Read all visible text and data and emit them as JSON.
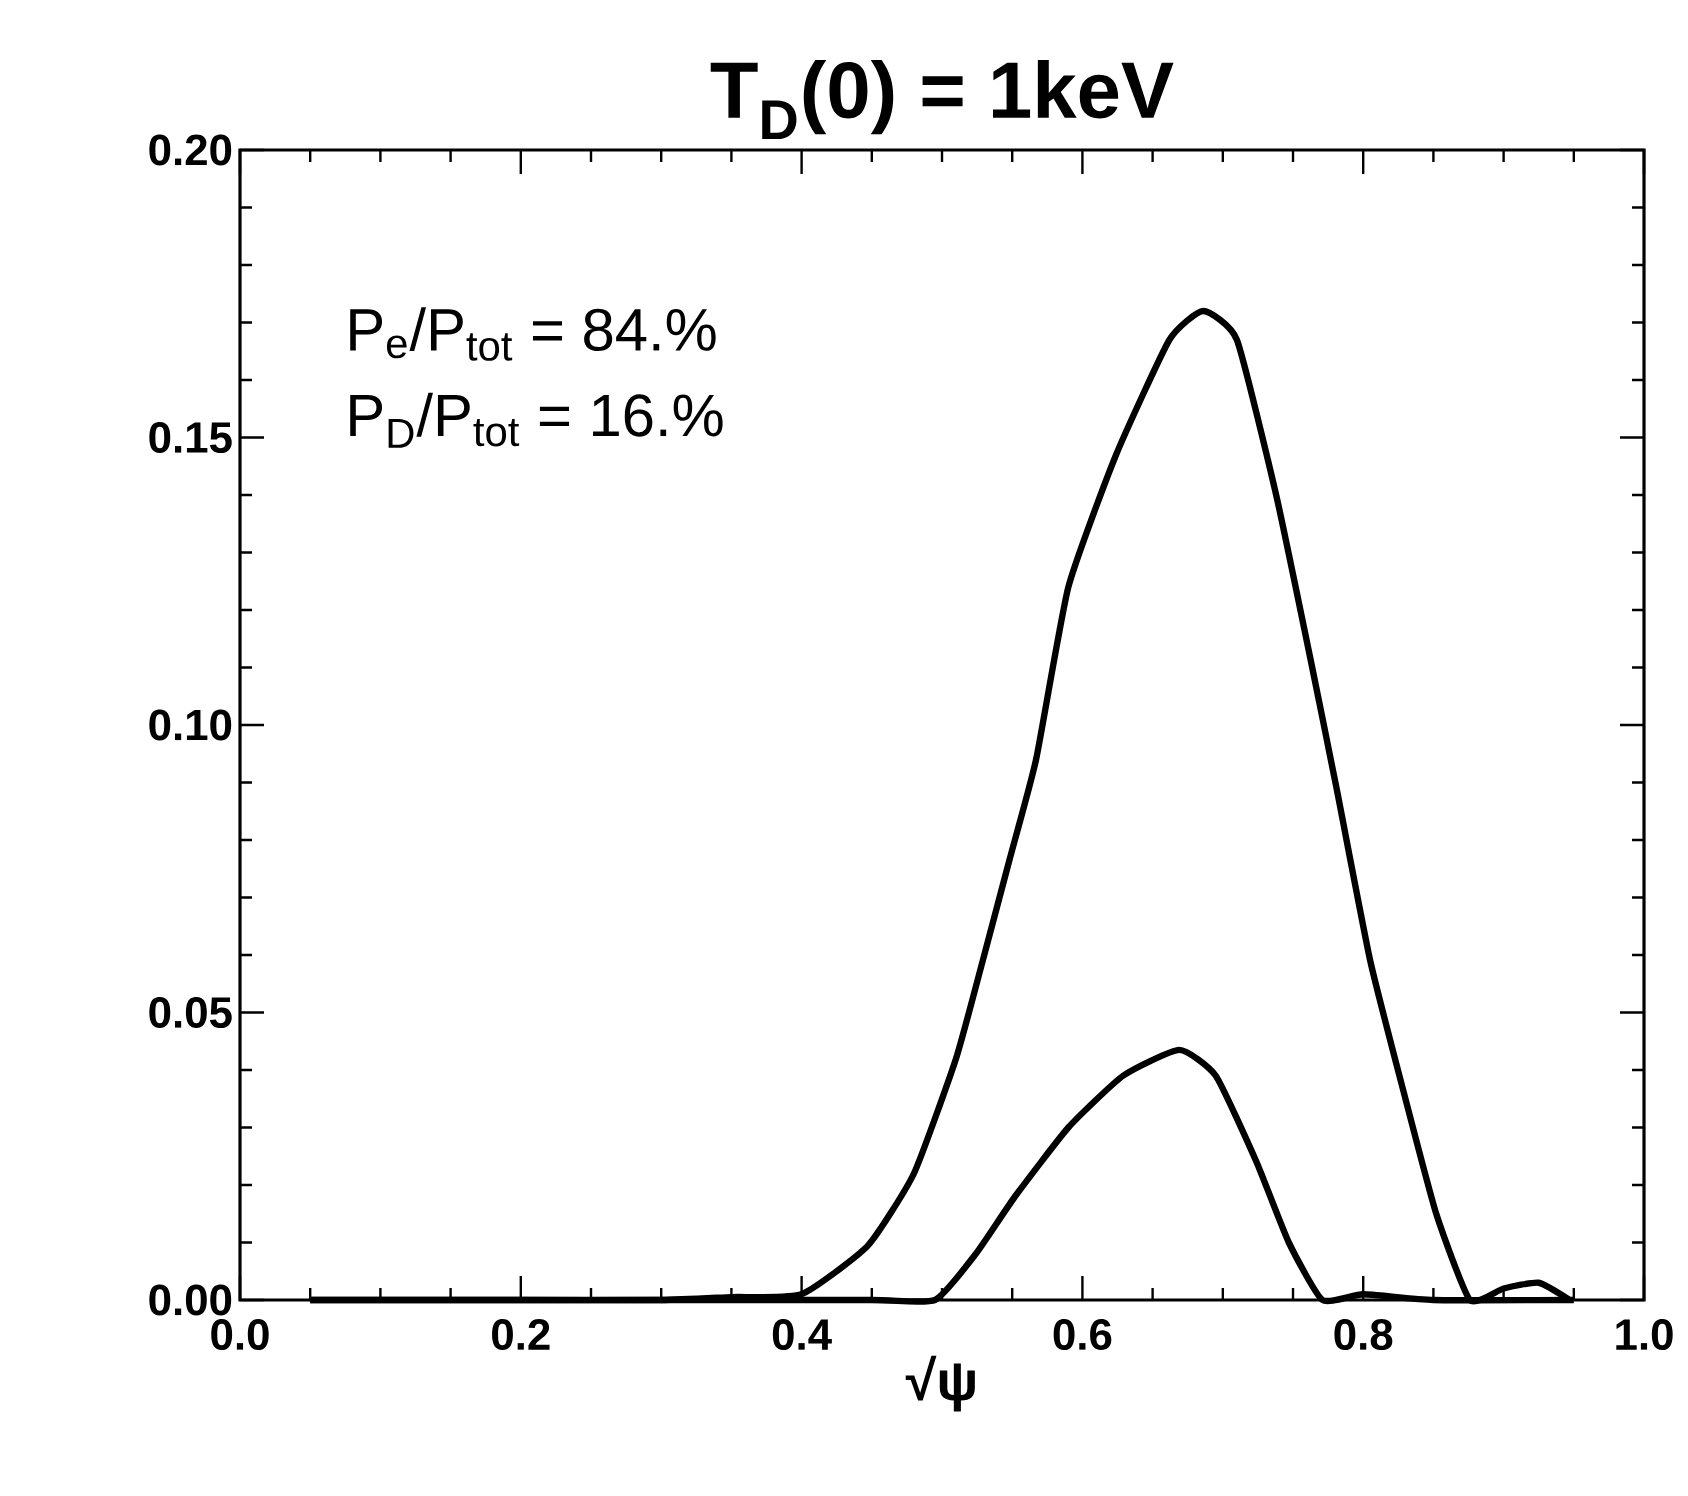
{
  "chart_data": {
    "type": "line",
    "title": "T$_{D}$(0) = 1keV",
    "xlabel": "√ψ",
    "annotations": [
      "P$_{e}$/P$_{tot}$ = 84.%",
      "P$_{D}$/P$_{tot}$ = 16.%"
    ],
    "xlim": [
      0,
      1
    ],
    "ylim": [
      0,
      0.2
    ],
    "xticks": [
      {
        "value": 0,
        "label": "0.0"
      },
      0.2,
      0.4,
      0.6,
      0.8,
      {
        "value": 1,
        "label": "1.0"
      }
    ],
    "yticks": [
      {
        "value": 0,
        "label": "0.00"
      },
      0.05,
      {
        "value": 0.1,
        "label": "0.10"
      },
      0.15,
      {
        "value": 0.2,
        "label": "0.20"
      }
    ],
    "series": [
      {
        "color": "#000000",
        "x": [
          0.05,
          0.2,
          0.3,
          0.35,
          0.4,
          0.447,
          0.48,
          0.51,
          0.529,
          0.548,
          0.567,
          0.59,
          0.624,
          0.662,
          0.686,
          0.71,
          0.738,
          0.762,
          0.781,
          0.805,
          0.829,
          0.852,
          0.876,
          0.9,
          0.925,
          0.947
        ],
        "values": [
          0,
          0,
          0,
          0.0005,
          0.001,
          0.0094,
          0.022,
          0.042,
          0.059,
          0.0765,
          0.094,
          0.124,
          0.147,
          0.167,
          0.172,
          0.167,
          0.14,
          0.112,
          0.089,
          0.059,
          0.036,
          0.015,
          0,
          0.002,
          0.003,
          0
        ]
      },
      {
        "color": "#000000",
        "x": [
          0.05,
          0.3,
          0.45,
          0.495,
          0.524,
          0.552,
          0.59,
          0.629,
          0.669,
          0.695,
          0.724,
          0.747,
          0.771,
          0.8,
          0.85,
          0.95
        ],
        "values": [
          0,
          0,
          0,
          0,
          0.008,
          0.018,
          0.03,
          0.039,
          0.0435,
          0.039,
          0.024,
          0.01,
          0,
          0.001,
          0,
          0
        ]
      }
    ]
  }
}
